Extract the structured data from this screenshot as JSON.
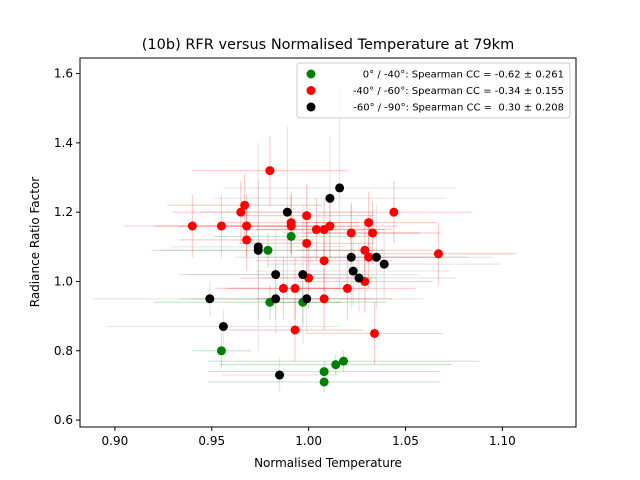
{
  "chart_data": {
    "type": "scatter",
    "title": "(10b) RFR versus Normalised Temperature at 79km",
    "xlabel": "Normalised Temperature",
    "ylabel": "Radiance Ratio Factor",
    "xlim": [
      0.882,
      1.138
    ],
    "ylim": [
      0.58,
      1.645
    ],
    "xticks": [
      0.9,
      0.95,
      1.0,
      1.05,
      1.1
    ],
    "xtick_labels": [
      "0.90",
      "0.95",
      "1.00",
      "1.05",
      "1.10"
    ],
    "yticks": [
      0.6,
      0.8,
      1.0,
      1.2,
      1.4,
      1.6
    ],
    "ytick_labels": [
      "0.6",
      "0.8",
      "1.0",
      "1.2",
      "1.4",
      "1.6"
    ],
    "legend_position": "upper right",
    "series": [
      {
        "name": "0° / -40°: Spearman CC = -0.62 ± 0.261",
        "color": "#008000",
        "errorbar_color": "#008000",
        "points": [
          {
            "x": 0.955,
            "y": 0.8,
            "xerr": 0.015,
            "yerr": 0.05
          },
          {
            "x": 0.979,
            "y": 1.09,
            "xerr": 0.06,
            "yerr": 0.05
          },
          {
            "x": 0.98,
            "y": 0.94,
            "xerr": 0.06,
            "yerr": 0.05
          },
          {
            "x": 0.991,
            "y": 1.13,
            "xerr": 0.04,
            "yerr": 0.05
          },
          {
            "x": 0.997,
            "y": 0.94,
            "xerr": 0.02,
            "yerr": 0.06
          },
          {
            "x": 1.008,
            "y": 0.74,
            "xerr": 0.06,
            "yerr": 0.03
          },
          {
            "x": 1.008,
            "y": 0.71,
            "xerr": 0.06,
            "yerr": 0.03
          },
          {
            "x": 1.014,
            "y": 0.76,
            "xerr": 0.06,
            "yerr": 0.03
          },
          {
            "x": 1.018,
            "y": 0.77,
            "xerr": 0.07,
            "yerr": 0.03
          }
        ]
      },
      {
        "name": "-40° / -60°: Spearman CC = -0.34 ± 0.155",
        "color": "#ff0000",
        "errorbar_color": "#ff0000",
        "points": [
          {
            "x": 0.94,
            "y": 1.16,
            "xerr": 0.035,
            "yerr": 0.09
          },
          {
            "x": 0.955,
            "y": 1.16,
            "xerr": 0.035,
            "yerr": 0.09
          },
          {
            "x": 0.965,
            "y": 1.2,
            "xerr": 0.035,
            "yerr": 0.09
          },
          {
            "x": 0.967,
            "y": 1.22,
            "xerr": 0.04,
            "yerr": 0.09
          },
          {
            "x": 0.968,
            "y": 1.12,
            "xerr": 0.035,
            "yerr": 0.09
          },
          {
            "x": 0.968,
            "y": 1.16,
            "xerr": 0.035,
            "yerr": 0.09
          },
          {
            "x": 0.98,
            "y": 1.32,
            "xerr": 0.04,
            "yerr": 0.1
          },
          {
            "x": 0.987,
            "y": 0.98,
            "xerr": 0.035,
            "yerr": 0.09
          },
          {
            "x": 0.991,
            "y": 1.17,
            "xerr": 0.035,
            "yerr": 0.09
          },
          {
            "x": 0.991,
            "y": 1.16,
            "xerr": 0.035,
            "yerr": 0.09
          },
          {
            "x": 0.993,
            "y": 0.98,
            "xerr": 0.035,
            "yerr": 0.09
          },
          {
            "x": 0.993,
            "y": 0.86,
            "xerr": 0.035,
            "yerr": 0.09
          },
          {
            "x": 0.999,
            "y": 1.19,
            "xerr": 0.035,
            "yerr": 0.09
          },
          {
            "x": 0.999,
            "y": 1.11,
            "xerr": 0.035,
            "yerr": 0.09
          },
          {
            "x": 1.0,
            "y": 1.01,
            "xerr": 0.035,
            "yerr": 0.09
          },
          {
            "x": 1.004,
            "y": 1.15,
            "xerr": 0.035,
            "yerr": 0.09
          },
          {
            "x": 1.008,
            "y": 1.06,
            "xerr": 0.035,
            "yerr": 0.09
          },
          {
            "x": 1.008,
            "y": 0.95,
            "xerr": 0.035,
            "yerr": 0.09
          },
          {
            "x": 1.008,
            "y": 1.15,
            "xerr": 0.035,
            "yerr": 0.09
          },
          {
            "x": 1.011,
            "y": 1.16,
            "xerr": 0.035,
            "yerr": 0.09
          },
          {
            "x": 1.02,
            "y": 0.98,
            "xerr": 0.035,
            "yerr": 0.09
          },
          {
            "x": 1.022,
            "y": 1.14,
            "xerr": 0.035,
            "yerr": 0.09
          },
          {
            "x": 1.029,
            "y": 1.0,
            "xerr": 0.035,
            "yerr": 0.09
          },
          {
            "x": 1.029,
            "y": 1.09,
            "xerr": 0.035,
            "yerr": 0.09
          },
          {
            "x": 1.031,
            "y": 1.17,
            "xerr": 0.035,
            "yerr": 0.09
          },
          {
            "x": 1.031,
            "y": 1.07,
            "xerr": 0.035,
            "yerr": 0.09
          },
          {
            "x": 1.033,
            "y": 1.14,
            "xerr": 0.035,
            "yerr": 0.09
          },
          {
            "x": 1.034,
            "y": 0.85,
            "xerr": 0.035,
            "yerr": 0.09
          },
          {
            "x": 1.044,
            "y": 1.2,
            "xerr": 0.04,
            "yerr": 0.09
          },
          {
            "x": 1.067,
            "y": 1.08,
            "xerr": 0.04,
            "yerr": 0.09
          }
        ]
      },
      {
        "name": "-60° / -90°: Spearman CC =  0.30 ± 0.208",
        "color": "#000000",
        "errorbar_color": "#808080",
        "points": [
          {
            "x": 0.949,
            "y": 0.95,
            "xerr": 0.06,
            "yerr": 0.05
          },
          {
            "x": 0.956,
            "y": 0.87,
            "xerr": 0.06,
            "yerr": 0.05
          },
          {
            "x": 0.974,
            "y": 1.1,
            "xerr": 0.045,
            "yerr": 0.3
          },
          {
            "x": 0.974,
            "y": 1.09,
            "xerr": 0.05,
            "yerr": 0.2
          },
          {
            "x": 0.983,
            "y": 1.02,
            "xerr": 0.05,
            "yerr": 0.13
          },
          {
            "x": 0.983,
            "y": 0.95,
            "xerr": 0.05,
            "yerr": 0.1
          },
          {
            "x": 0.985,
            "y": 0.73,
            "xerr": 0.03,
            "yerr": 0.05
          },
          {
            "x": 0.989,
            "y": 1.2,
            "xerr": 0.045,
            "yerr": 0.25
          },
          {
            "x": 0.997,
            "y": 1.02,
            "xerr": 0.06,
            "yerr": 0.2
          },
          {
            "x": 0.999,
            "y": 0.95,
            "xerr": 0.06,
            "yerr": 0.1
          },
          {
            "x": 1.011,
            "y": 1.24,
            "xerr": 0.06,
            "yerr": 0.18
          },
          {
            "x": 1.016,
            "y": 1.27,
            "xerr": 0.06,
            "yerr": 0.3
          },
          {
            "x": 1.022,
            "y": 1.07,
            "xerr": 0.06,
            "yerr": 0.15
          },
          {
            "x": 1.023,
            "y": 1.03,
            "xerr": 0.05,
            "yerr": 0.1
          },
          {
            "x": 1.026,
            "y": 1.01,
            "xerr": 0.05,
            "yerr": 0.1
          },
          {
            "x": 1.035,
            "y": 1.07,
            "xerr": 0.06,
            "yerr": 0.15
          },
          {
            "x": 1.039,
            "y": 1.05,
            "xerr": 0.06,
            "yerr": 0.1
          }
        ]
      }
    ]
  }
}
